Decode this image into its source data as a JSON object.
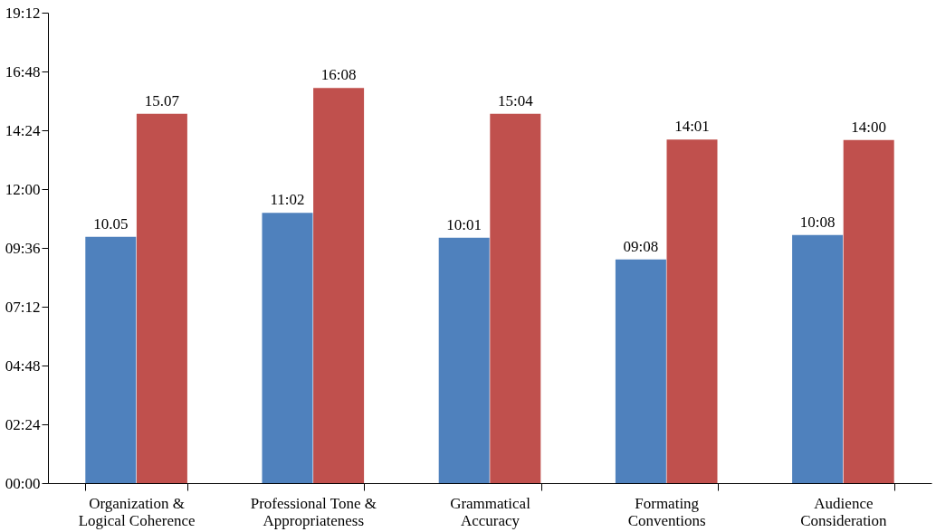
{
  "chart_data": {
    "type": "bar",
    "categories": [
      "Organization &\nLogical Coherence",
      "Professional Tone &\nAppropriateness",
      "Grammatical\nAccuracy",
      "Formating\nConventions",
      "Audience\nConsideration"
    ],
    "series": [
      {
        "color": "#4f81bd",
        "values": [
          10.05,
          11.03,
          10.02,
          9.13,
          10.13
        ],
        "value_labels": [
          "10.05",
          "11:02",
          "10:01",
          "09:08",
          "10:08"
        ]
      },
      {
        "color": "#c0504d",
        "values": [
          15.07,
          16.13,
          15.07,
          14.02,
          14.0
        ],
        "value_labels": [
          "15.07",
          "16:08",
          "15:04",
          "14:01",
          "14:00"
        ]
      }
    ],
    "ylim": [
      0,
      19.2
    ],
    "yticks": [
      {
        "value": 0,
        "label": "00:00"
      },
      {
        "value": 2.4,
        "label": "02:24"
      },
      {
        "value": 4.8,
        "label": "04:48"
      },
      {
        "value": 7.2,
        "label": "07:12"
      },
      {
        "value": 9.6,
        "label": "09:36"
      },
      {
        "value": 12,
        "label": "12:00"
      },
      {
        "value": 14.4,
        "label": "14:24"
      },
      {
        "value": 16.8,
        "label": "16:48"
      },
      {
        "value": 19.2,
        "label": "19:12"
      }
    ],
    "grid": false,
    "legend": false
  }
}
